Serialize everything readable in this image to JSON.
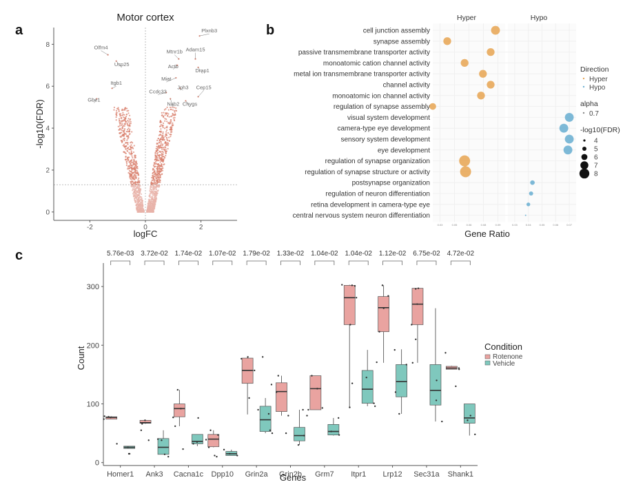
{
  "panels": {
    "a": {
      "letter": "a"
    },
    "b": {
      "letter": "b"
    },
    "c": {
      "letter": "c"
    }
  },
  "colors": {
    "volcano_inner": "#e8b3aa",
    "volcano_outer": "#d9826f",
    "hyper": "#e8a95a",
    "hypo": "#6fb1d3",
    "rotenone": "#e9a3a0",
    "vehicle": "#7fc8bd",
    "axis": "#555555",
    "grid": "#f0f0f0"
  },
  "chart_data": [
    {
      "type": "scatter",
      "name": "volcano",
      "title": "Motor cortex",
      "xlabel": "logFC",
      "ylabel": "-log10(FDR)",
      "xlim": [
        -3.3,
        3.3
      ],
      "ylim": [
        -0.4,
        8.8
      ],
      "xticks": [
        -2,
        0,
        2
      ],
      "yticks": [
        0,
        2,
        4,
        6,
        8
      ],
      "xtick_labels": [
        "-2",
        "0",
        "2"
      ],
      "ytick_labels": [
        "0",
        "2",
        "4",
        "6",
        "8"
      ],
      "threshold_fdr_line": 1.3,
      "vline": 0,
      "grid": false,
      "labeled_genes": [
        {
          "gene": "Plxnb3",
          "x": 1.95,
          "y": 8.4,
          "label_x": 2.3,
          "label_y": 8.5
        },
        {
          "gene": "Olfm4",
          "x": -1.35,
          "y": 7.5,
          "label_x": -1.6,
          "label_y": 7.7
        },
        {
          "gene": "Usp25",
          "x": -1.05,
          "y": 7.2,
          "label_x": -0.85,
          "label_y": 6.9
        },
        {
          "gene": "Mtnr1b",
          "x": 1.2,
          "y": 7.3,
          "label_x": 1.05,
          "label_y": 7.5
        },
        {
          "gene": "Adam15",
          "x": 1.8,
          "y": 7.3,
          "label_x": 1.8,
          "label_y": 7.6
        },
        {
          "gene": "Actb",
          "x": 1.15,
          "y": 7.0,
          "label_x": 1.0,
          "label_y": 6.8
        },
        {
          "gene": "Drap1",
          "x": 1.9,
          "y": 6.9,
          "label_x": 2.05,
          "label_y": 6.6
        },
        {
          "gene": "Miat",
          "x": 1.1,
          "y": 6.4,
          "label_x": 0.75,
          "label_y": 6.2
        },
        {
          "gene": "Itgb1",
          "x": -1.2,
          "y": 5.9,
          "label_x": -1.05,
          "label_y": 6.0
        },
        {
          "gene": "Jph3",
          "x": 1.25,
          "y": 5.9,
          "label_x": 1.35,
          "label_y": 5.8
        },
        {
          "gene": "Cep15",
          "x": 1.9,
          "y": 5.5,
          "label_x": 2.1,
          "label_y": 5.8
        },
        {
          "gene": "Ccdc33",
          "x": 0.75,
          "y": 5.7,
          "label_x": 0.45,
          "label_y": 5.6
        },
        {
          "gene": "Gbe1",
          "x": -1.75,
          "y": 5.4,
          "label_x": -1.85,
          "label_y": 5.2
        },
        {
          "gene": "Nab2",
          "x": 0.9,
          "y": 5.4,
          "label_x": 1.0,
          "label_y": 5.0
        },
        {
          "gene": "Chygs",
          "x": 1.45,
          "y": 5.3,
          "label_x": 1.6,
          "label_y": 5.0
        }
      ]
    },
    {
      "type": "scatter",
      "name": "go_dotplot",
      "xlabel": "Gene Ratio",
      "facets": [
        "Hyper",
        "Hypo"
      ],
      "hyper_xlim": [
        0.03,
        0.105
      ],
      "hypo_xlim": [
        0.025,
        0.075
      ],
      "xtick_labels_hyper": [
        "0.03",
        "0.05",
        "0.06",
        "0.08",
        "0.09"
      ],
      "xtick_labels_hypo": [
        "0.03",
        "0.04",
        "0.05",
        "0.06",
        "0.07"
      ],
      "terms": [
        {
          "term": "cell junction assembly",
          "direction": "Hyper",
          "gene_ratio": 0.095,
          "neg_log10_fdr": 7.0
        },
        {
          "term": "synapse assembly",
          "direction": "Hyper",
          "gene_ratio": 0.045,
          "neg_log10_fdr": 6.5
        },
        {
          "term": "passive transmembrane transporter activity",
          "direction": "Hyper",
          "gene_ratio": 0.09,
          "neg_log10_fdr": 6.5
        },
        {
          "term": "monoatomic cation channel activity",
          "direction": "Hyper",
          "gene_ratio": 0.063,
          "neg_log10_fdr": 6.5
        },
        {
          "term": "metal ion transmembrane transporter activity",
          "direction": "Hyper",
          "gene_ratio": 0.082,
          "neg_log10_fdr": 6.5
        },
        {
          "term": "channel activity",
          "direction": "Hyper",
          "gene_ratio": 0.09,
          "neg_log10_fdr": 6.5
        },
        {
          "term": "monoatomic ion channel activity",
          "direction": "Hyper",
          "gene_ratio": 0.08,
          "neg_log10_fdr": 6.5
        },
        {
          "term": "regulation of synapse assembly",
          "direction": "Hyper",
          "gene_ratio": 0.03,
          "neg_log10_fdr": 6.0
        },
        {
          "term": "visual system development",
          "direction": "Hypo",
          "gene_ratio": 0.07,
          "neg_log10_fdr": 7.0
        },
        {
          "term": "camera-type eye development",
          "direction": "Hypo",
          "gene_ratio": 0.066,
          "neg_log10_fdr": 7.0
        },
        {
          "term": "sensory system development",
          "direction": "Hypo",
          "gene_ratio": 0.07,
          "neg_log10_fdr": 7.0
        },
        {
          "term": "eye development",
          "direction": "Hypo",
          "gene_ratio": 0.069,
          "neg_log10_fdr": 7.0
        },
        {
          "term": "regulation of synapse organization",
          "direction": "Hyper",
          "gene_ratio": 0.063,
          "neg_log10_fdr": 8.0
        },
        {
          "term": "regulation of synapse structure or activity",
          "direction": "Hyper",
          "gene_ratio": 0.064,
          "neg_log10_fdr": 8.0
        },
        {
          "term": "postsynapse organization",
          "direction": "Hypo",
          "gene_ratio": 0.043,
          "neg_log10_fdr": 5.0
        },
        {
          "term": "regulation of neuron differentiation",
          "direction": "Hypo",
          "gene_ratio": 0.042,
          "neg_log10_fdr": 4.8
        },
        {
          "term": "retina development in camera-type eye",
          "direction": "Hypo",
          "gene_ratio": 0.04,
          "neg_log10_fdr": 4.6
        },
        {
          "term": "central nervous system neuron differentiation",
          "direction": "Hypo",
          "gene_ratio": 0.038,
          "neg_log10_fdr": 3.5
        }
      ],
      "legend": {
        "direction_title": "Direction",
        "direction_items": [
          "Hyper",
          "Hypo"
        ],
        "alpha_title": "alpha",
        "alpha_items": [
          "0.7"
        ],
        "size_title": "-log10(FDR)",
        "size_items": [
          "4",
          "5",
          "6",
          "7",
          "8"
        ]
      }
    },
    {
      "type": "box",
      "name": "gene_counts",
      "xlabel": "Genes",
      "ylabel": "Count",
      "ylim": [
        -5,
        340
      ],
      "yticks": [
        0,
        100,
        200,
        300
      ],
      "ytick_labels": [
        "0",
        "100",
        "200",
        "300"
      ],
      "legend_title": "Condition",
      "legend_items": [
        "Rotenone",
        "Vehicle"
      ],
      "categories": [
        "Homer1",
        "Ank3",
        "Cacna1c",
        "Dpp10",
        "Grin2a",
        "Grin2b",
        "Grm7",
        "Itpr1",
        "Lrp12",
        "Sec31a",
        "Shank1"
      ],
      "pvalues": [
        "5.76e-03",
        "3.72e-02",
        "1.74e-02",
        "1.07e-02",
        "1.79e-02",
        "1.33e-02",
        "1.04e-02",
        "1.04e-02",
        "1.12e-02",
        "6.75e-02",
        "4.72e-02"
      ],
      "series": [
        {
          "name": "Rotenone",
          "boxes": [
            {
              "min": 74,
              "q1": 74,
              "median": 77,
              "q3": 78,
              "max": 79,
              "points": [
                74,
                77,
                78,
                79,
                32
              ]
            },
            {
              "min": 66,
              "q1": 67,
              "median": 68,
              "q3": 72,
              "max": 72,
              "points": [
                72,
                66,
                55,
                38
              ]
            },
            {
              "min": 62,
              "q1": 78,
              "median": 92,
              "q3": 100,
              "max": 124,
              "points": [
                124,
                77,
                62,
                23,
                92
              ]
            },
            {
              "min": 26,
              "q1": 27,
              "median": 40,
              "q3": 48,
              "max": 55,
              "points": [
                55,
                47,
                39,
                26,
                12,
                10
              ]
            },
            {
              "min": 82,
              "q1": 135,
              "median": 157,
              "q3": 178,
              "max": 180,
              "points": [
                180,
                177,
                110,
                157
              ]
            },
            {
              "min": 80,
              "q1": 87,
              "median": 121,
              "q3": 136,
              "max": 148,
              "points": [
                148,
                120,
                50,
                80
              ]
            },
            {
              "min": 90,
              "q1": 90,
              "median": 126,
              "q3": 148,
              "max": 148,
              "points": [
                148,
                126,
                90,
                93
              ]
            },
            {
              "min": 94,
              "q1": 235,
              "median": 281,
              "q3": 302,
              "max": 303,
              "points": [
                303,
                302,
                281,
                235,
                135,
                94,
                301
              ]
            },
            {
              "min": 170,
              "q1": 223,
              "median": 264,
              "q3": 283,
              "max": 302,
              "points": [
                302,
                284,
                263,
                223,
                171
              ]
            },
            {
              "min": 170,
              "q1": 235,
              "median": 270,
              "q3": 297,
              "max": 297,
              "points": [
                297,
                296,
                270,
                235,
                210,
                170
              ]
            },
            {
              "min": 159,
              "q1": 159,
              "median": 161,
              "q3": 164,
              "max": 165,
              "points": [
                187,
                161,
                159,
                130
              ]
            }
          ]
        },
        {
          "name": "Vehicle",
          "boxes": [
            {
              "min": 24,
              "q1": 24,
              "median": 26,
              "q3": 28,
              "max": 28,
              "points": [
                26,
                15,
                15
              ]
            },
            {
              "min": 14,
              "q1": 14,
              "median": 26,
              "q3": 41,
              "max": 55,
              "points": [
                40,
                38,
                14,
                10
              ]
            },
            {
              "min": 28,
              "q1": 32,
              "median": 36,
              "q3": 48,
              "max": 48,
              "points": [
                76,
                35,
                32
              ]
            },
            {
              "min": 12,
              "q1": 12,
              "median": 15,
              "q3": 19,
              "max": 22,
              "points": [
                22,
                15,
                12
              ]
            },
            {
              "min": 50,
              "q1": 53,
              "median": 73,
              "q3": 96,
              "max": 110,
              "points": [
                180,
                133,
                90,
                83,
                55,
                50
              ]
            },
            {
              "min": 30,
              "q1": 37,
              "median": 46,
              "q3": 60,
              "max": 90,
              "points": [
                90,
                80,
                46,
                30
              ]
            },
            {
              "min": 46,
              "q1": 47,
              "median": 53,
              "q3": 65,
              "max": 76,
              "points": [
                76,
                53,
                47
              ]
            },
            {
              "min": 96,
              "q1": 101,
              "median": 125,
              "q3": 157,
              "max": 192,
              "points": [
                145,
                101,
                96
              ]
            },
            {
              "min": 83,
              "q1": 112,
              "median": 138,
              "q3": 167,
              "max": 193,
              "points": [
                192,
                167,
                120,
                83
              ]
            },
            {
              "min": 70,
              "q1": 98,
              "median": 123,
              "q3": 167,
              "max": 263,
              "points": [
                140,
                106,
                70
              ]
            },
            {
              "min": 46,
              "q1": 67,
              "median": 76,
              "q3": 100,
              "max": 100,
              "points": [
                80,
                72,
                48
              ]
            }
          ]
        }
      ]
    }
  ]
}
